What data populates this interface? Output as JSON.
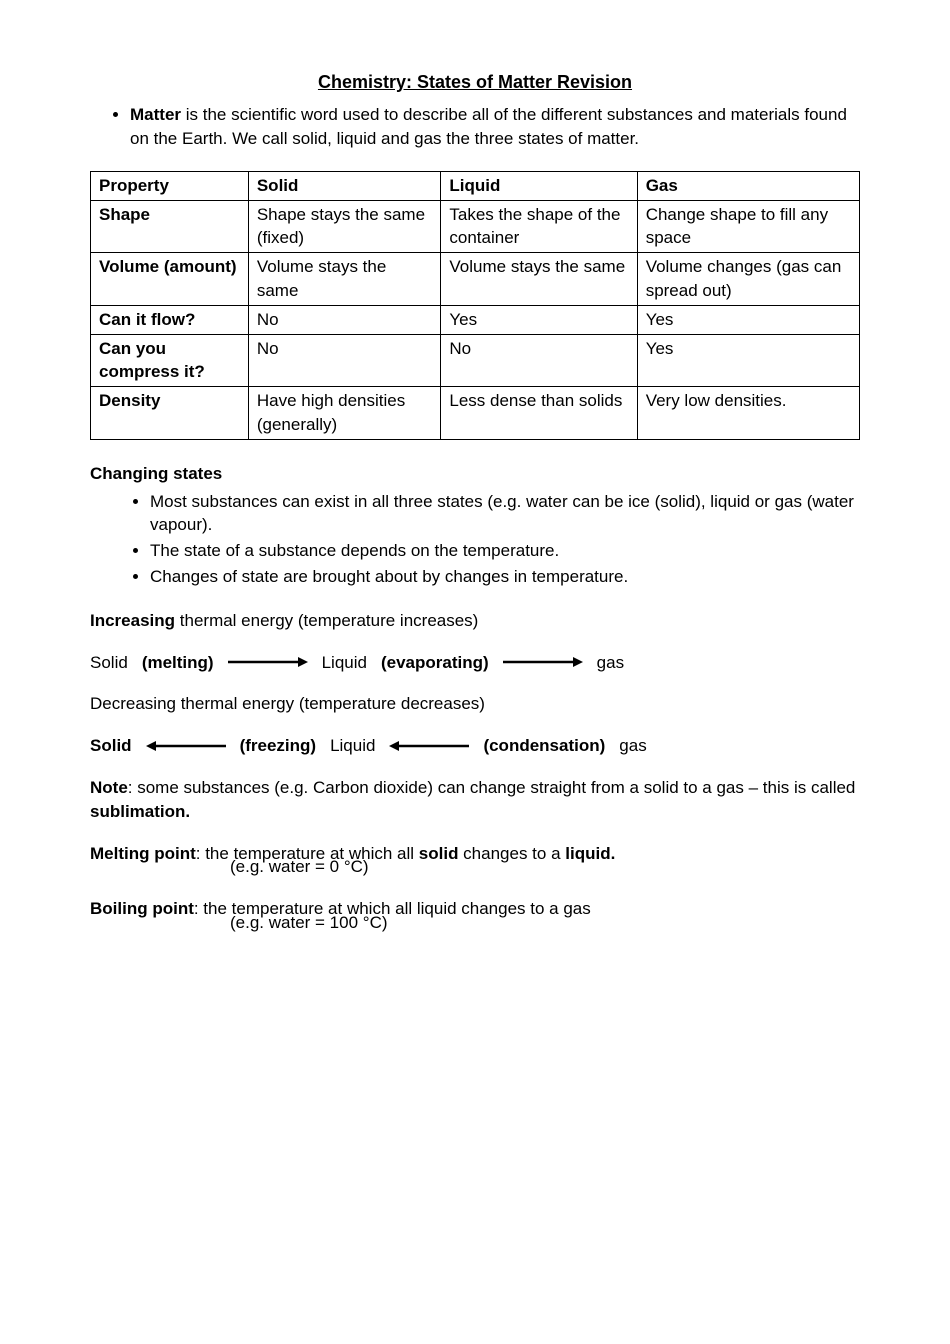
{
  "title": "Chemistry:  States of Matter Revision",
  "intro_bullet": "<b>Matter</b> is the scientific word used to describe all of the different substances and materials found on the Earth.  We call solid, liquid and gas the three states of matter.",
  "table": {
    "headers": [
      "Property",
      "Solid",
      "Liquid",
      "Gas"
    ],
    "rows": [
      [
        "Shape",
        "Shape stays the same (fixed)",
        "Takes the shape of the container",
        "Change shape to fill any space"
      ],
      [
        "Volume (amount)",
        "Volume stays the same",
        "Volume stays the same",
        "Volume changes (gas can spread out)"
      ],
      [
        "Can it flow?",
        "No",
        "Yes",
        "Yes"
      ],
      [
        "Can you compress it?",
        "No",
        "No",
        "Yes"
      ],
      [
        "Density",
        "Have high densities (generally)",
        "Less dense than solids",
        "Very low densities."
      ]
    ],
    "border_color": "#000000"
  },
  "changing_states": {
    "heading": "Changing states",
    "bullets": [
      "Most substances can exist in all three states (e.g. water can be ice (solid), liquid or gas (water vapour).",
      "The state of a substance depends on the temperature.",
      "Changes of state are brought about by changes in temperature."
    ]
  },
  "increasing_line": "<b>Increasing</b> thermal energy (temperature increases)",
  "arrow_fwd": {
    "s1": "Solid",
    "l1": "(melting)",
    "s2": "Liquid",
    "l2": "(evaporating)",
    "s3": "gas",
    "arrow_color": "#000000",
    "arrow_len": 80
  },
  "decreasing_line": "Decreasing thermal energy (temperature decreases)",
  "arrow_back": {
    "s1": "Solid",
    "l1": "(freezing)",
    "s2": "Liquid",
    "l2": "(condensation)",
    "s3": "gas",
    "arrow_color": "#000000",
    "arrow_len": 80
  },
  "note": "<b>Note</b>:  some substances (e.g. Carbon dioxide) can change straight from a solid to a gas – this is called <b>sublimation.</b>",
  "melting_point": "<b>Melting point</b>:  the temperature at which all <b>solid</b> changes to a <b>liquid.</b>",
  "melting_point_eg": "(e.g. water = 0 °C)",
  "boiling_point": "<b>Boiling point</b>:  the temperature at which all liquid changes to a gas",
  "boiling_point_eg": "(e.g. water = 100 °C)"
}
